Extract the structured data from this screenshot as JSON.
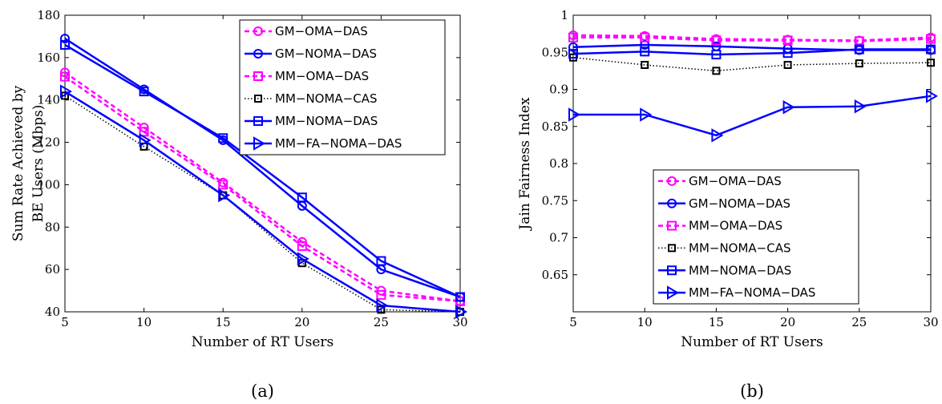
{
  "chart_data": [
    {
      "type": "line",
      "panel_label": "(a)",
      "xlabel": "Number of RT Users",
      "ylabel_lines": [
        "Sum Rate Achieved by",
        "BE Users (Mbps)"
      ],
      "xlim": [
        5,
        30
      ],
      "ylim": [
        40,
        180
      ],
      "xticks": [
        5,
        10,
        15,
        20,
        25,
        30
      ],
      "yticks": [
        40,
        60,
        80,
        100,
        120,
        140,
        160,
        180
      ],
      "x": [
        5,
        10,
        15,
        20,
        25,
        30
      ],
      "grid": false,
      "legend_position": "top-right",
      "series": [
        {
          "name": "GM−OMA−DAS",
          "values": [
            153,
            127,
            101,
            73,
            50,
            45
          ],
          "color": "#ff00ff",
          "dash": true,
          "marker": "circle"
        },
        {
          "name": "GM−NOMA−DAS",
          "values": [
            169,
            145,
            121,
            90,
            60,
            47
          ],
          "color": "#0000ff",
          "dash": false,
          "marker": "circle"
        },
        {
          "name": "MM−OMA−DAS",
          "values": [
            151,
            125,
            100,
            71,
            48,
            45
          ],
          "color": "#ff00ff",
          "dash": true,
          "marker": "square"
        },
        {
          "name": "MM−NOMA−CAS",
          "values": [
            142,
            118,
            95,
            63,
            41,
            40
          ],
          "color": "#000000",
          "dotted": true,
          "marker": "square-open"
        },
        {
          "name": "MM−NOMA−DAS",
          "values": [
            166,
            144,
            122,
            94,
            64,
            47
          ],
          "color": "#0000ff",
          "dash": false,
          "marker": "square"
        },
        {
          "name": "MM−FA−NOMA−DAS",
          "values": [
            144,
            121,
            95,
            65,
            43,
            40
          ],
          "color": "#0000ff",
          "dash": false,
          "marker": "triangle"
        }
      ]
    },
    {
      "type": "line",
      "panel_label": "(b)",
      "xlabel": "Number of RT Users",
      "ylabel_lines": [
        "Jain Fairness Index"
      ],
      "xlim": [
        5,
        30
      ],
      "ylim": [
        0.6,
        1.0
      ],
      "xticks": [
        5,
        10,
        15,
        20,
        25,
        30
      ],
      "yticks": [
        0.65,
        0.7,
        0.75,
        0.8,
        0.85,
        0.9,
        0.95,
        1.0
      ],
      "ytick_labels": [
        "0.65",
        "0.7",
        "0.75",
        "0.8",
        "0.85",
        "0.9",
        "0.95",
        "1"
      ],
      "x": [
        5,
        10,
        15,
        20,
        25,
        30
      ],
      "grid": false,
      "legend_position": "bottom-center",
      "series": [
        {
          "name": "GM−OMA−DAS",
          "values": [
            0.973,
            0.972,
            0.968,
            0.967,
            0.966,
            0.97
          ],
          "color": "#ff00ff",
          "dash": true,
          "marker": "circle"
        },
        {
          "name": "GM−NOMA−DAS",
          "values": [
            0.957,
            0.96,
            0.958,
            0.955,
            0.953,
            0.953
          ],
          "color": "#0000ff",
          "dash": false,
          "marker": "circle"
        },
        {
          "name": "MM−OMA−DAS",
          "values": [
            0.97,
            0.97,
            0.966,
            0.966,
            0.965,
            0.968
          ],
          "color": "#ff00ff",
          "dash": true,
          "marker": "square"
        },
        {
          "name": "MM−NOMA−CAS",
          "values": [
            0.943,
            0.933,
            0.925,
            0.933,
            0.935,
            0.936
          ],
          "color": "#000000",
          "dotted": true,
          "marker": "square-open"
        },
        {
          "name": "MM−NOMA−DAS",
          "values": [
            0.948,
            0.951,
            0.947,
            0.949,
            0.954,
            0.954
          ],
          "color": "#0000ff",
          "dash": false,
          "marker": "square"
        },
        {
          "name": "MM−FA−NOMA−DAS",
          "values": [
            0.866,
            0.866,
            0.838,
            0.876,
            0.877,
            0.891
          ],
          "color": "#0000ff",
          "dash": false,
          "marker": "triangle"
        }
      ]
    }
  ]
}
